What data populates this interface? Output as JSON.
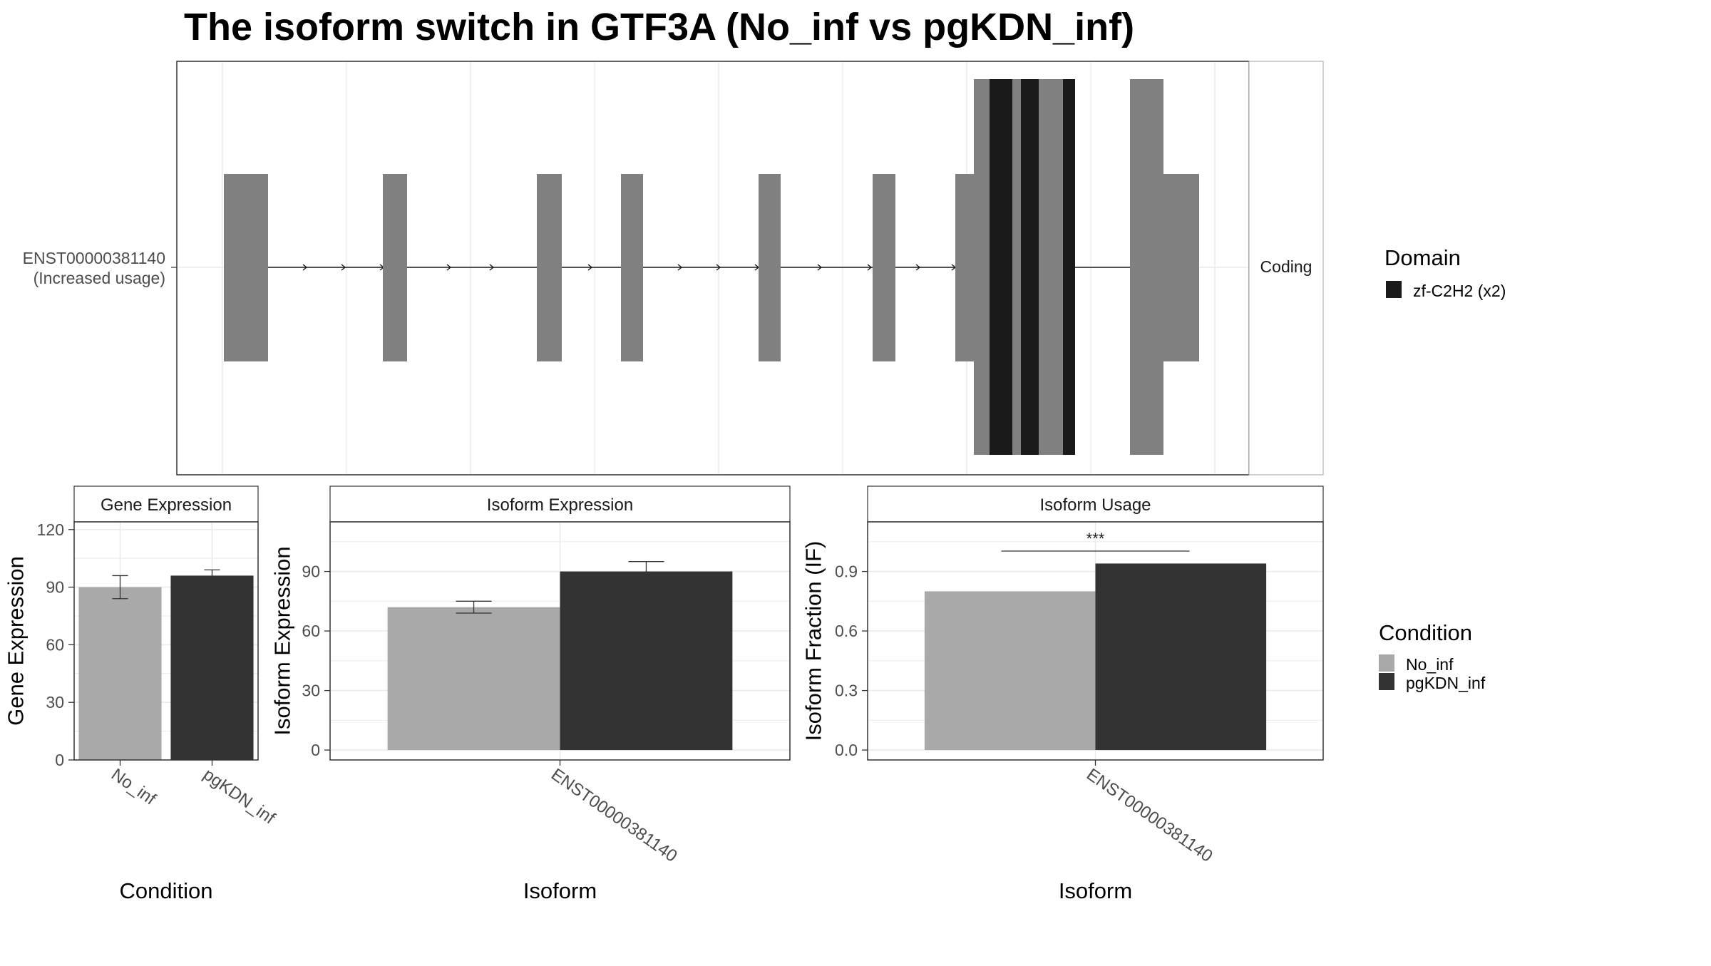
{
  "title": "The isoform switch in GTF3A (No_inf vs pgKDN_inf)",
  "colors": {
    "exon": "#808080",
    "domain": "#1a1a1a",
    "no_inf": "#a9a9a9",
    "pgkdn_inf": "#333333",
    "grid": "#ebebeb",
    "panel_border": "#333333",
    "strip_border": "#b3b3b3"
  },
  "structure": {
    "isoform_label": "ENST00000381140",
    "isoform_sublabel": "(Increased usage)",
    "facet_label": "Coding",
    "legend_title": "Domain",
    "legend_items": [
      {
        "label": "zf-C2H2 (x2)",
        "color": "#1a1a1a"
      }
    ]
  },
  "condition_legend": {
    "title": "Condition",
    "items": [
      {
        "label": "No_inf",
        "color": "#a9a9a9"
      },
      {
        "label": "pgKDN_inf",
        "color": "#333333"
      }
    ]
  },
  "chart_data": [
    {
      "type": "bar",
      "title": "Gene Expression",
      "xlabel": "Condition",
      "ylabel": "Gene Expression",
      "categories": [
        "No_inf",
        "pgKDN_inf"
      ],
      "values": [
        90,
        96
      ],
      "error_low": [
        84,
        93
      ],
      "error_high": [
        96,
        99
      ],
      "ylim": [
        0,
        124
      ],
      "yticks": [
        0,
        30,
        60,
        90,
        120
      ],
      "tick_labels": [
        "0",
        "30",
        "60",
        "90",
        "120"
      ],
      "grid": true
    },
    {
      "type": "bar",
      "title": "Isoform Expression",
      "xlabel": "Isoform",
      "ylabel": "Isoform Expression",
      "category": "ENST00000381140",
      "series": [
        {
          "name": "No_inf",
          "values": [
            72
          ],
          "error_low": [
            69
          ],
          "error_high": [
            75
          ]
        },
        {
          "name": "pgKDN_inf",
          "values": [
            90
          ],
          "error_low": [
            86
          ],
          "error_high": [
            95
          ]
        }
      ],
      "ylim": [
        -5,
        115
      ],
      "yticks": [
        0,
        30,
        60,
        90
      ],
      "tick_labels": [
        "0",
        "30",
        "60",
        "90"
      ],
      "grid": true
    },
    {
      "type": "bar",
      "title": "Isoform Usage",
      "xlabel": "Isoform",
      "ylabel": "Isoform Fraction (IF)",
      "category": "ENST00000381140",
      "series": [
        {
          "name": "No_inf",
          "values": [
            0.8
          ]
        },
        {
          "name": "pgKDN_inf",
          "values": [
            0.94
          ]
        }
      ],
      "significance": "***",
      "ylim": [
        -0.05,
        1.15
      ],
      "yticks": [
        0.0,
        0.3,
        0.6,
        0.9
      ],
      "tick_labels": [
        "0.0",
        "0.3",
        "0.6",
        "0.9"
      ],
      "grid": true
    }
  ]
}
